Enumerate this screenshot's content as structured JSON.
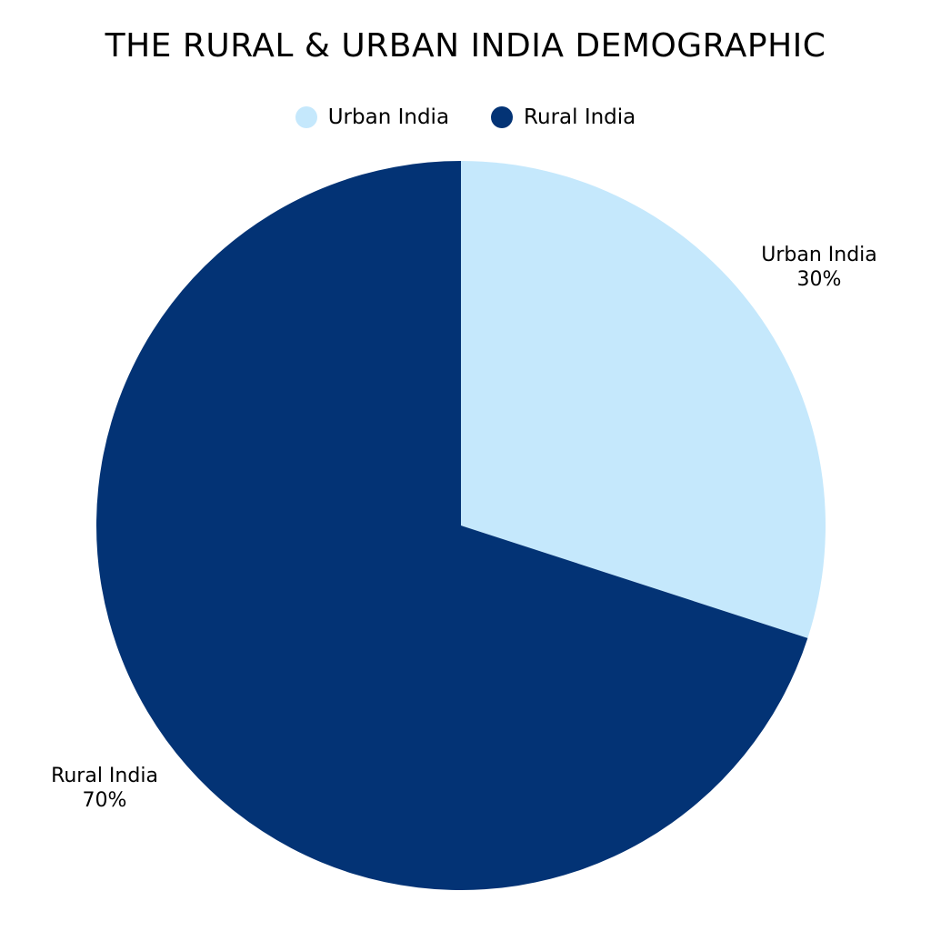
{
  "chart_data": {
    "type": "pie",
    "title": "THE RURAL & URBAN INDIA DEMOGRAPHIC",
    "legend_position": "top",
    "categories": [
      "Urban India",
      "Rural India"
    ],
    "values": [
      30,
      70
    ],
    "data_labels": [
      "30%",
      "70%"
    ],
    "colors": [
      "#c5e8fc",
      "#033375"
    ]
  }
}
